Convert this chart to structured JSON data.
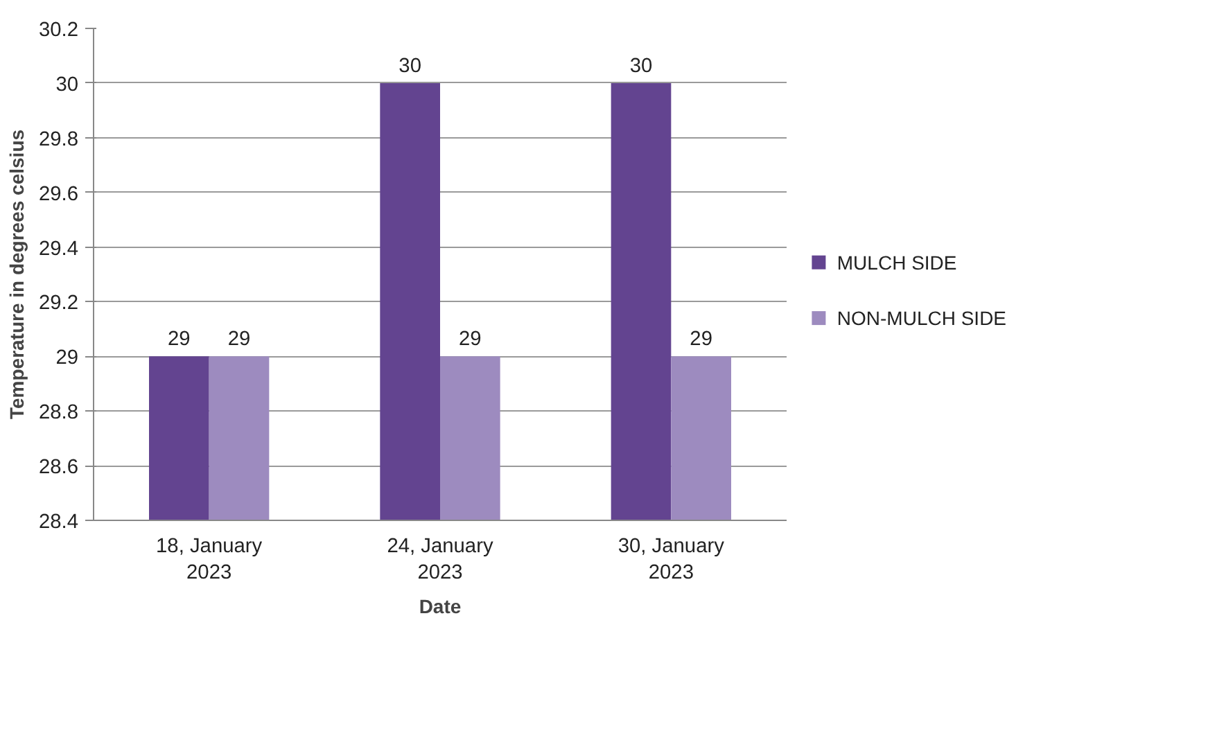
{
  "chart_data": {
    "type": "bar",
    "xlabel": "Date",
    "ylabel": "Temperature in degrees celsius",
    "categories": [
      "18, January 2023",
      "24, January 2023",
      "30, January 2023"
    ],
    "series": [
      {
        "name": "MULCH SIDE",
        "color": "#634490",
        "values": [
          29,
          30,
          30
        ]
      },
      {
        "name": "NON-MULCH SIDE",
        "color": "#9d8bbf",
        "values": [
          29,
          29,
          29
        ]
      }
    ],
    "ylim": [
      28.4,
      30.2
    ],
    "yticks": [
      28.4,
      28.6,
      28.8,
      29,
      29.2,
      29.4,
      29.6,
      29.8,
      30,
      30.2
    ],
    "grid": "y",
    "legend": "right",
    "data_labels": true
  }
}
